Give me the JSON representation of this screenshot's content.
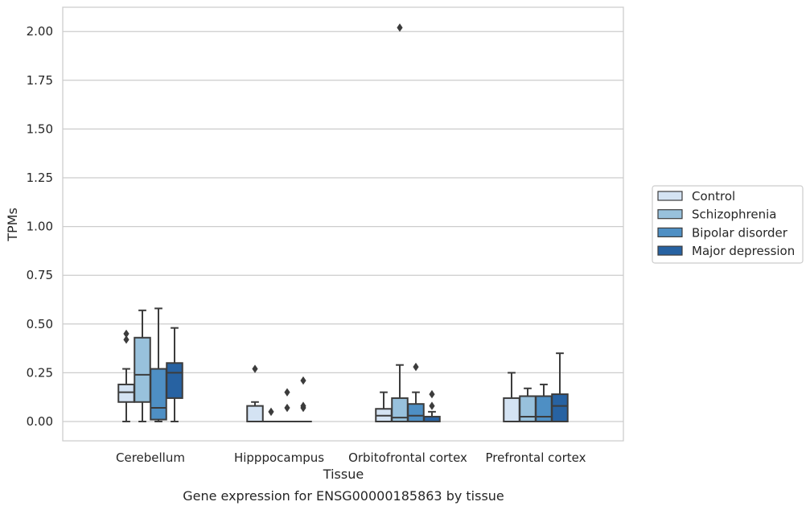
{
  "chart_data": {
    "type": "box",
    "title": "",
    "caption": "Gene expression for ENSG00000185863 by tissue",
    "xlabel": "Tissue",
    "ylabel": "TPMs",
    "ylim": [
      -0.1,
      2.12
    ],
    "yticks": [
      "0.00",
      "0.25",
      "0.50",
      "0.75",
      "1.00",
      "1.25",
      "1.50",
      "1.75",
      "2.00"
    ],
    "grid": "horizontal",
    "legend_position": "right",
    "categories": [
      "Cerebellum",
      "Hipppocampus",
      "Orbitofrontal cortex",
      "Prefrontal cortex"
    ],
    "colors": [
      "#d4e3f3",
      "#98c1dc",
      "#4e8fc4",
      "#2762a2"
    ],
    "series": [
      {
        "name": "Control",
        "boxes": [
          {
            "whisker_low": 0.0,
            "q1": 0.1,
            "median": 0.15,
            "q3": 0.19,
            "whisker_high": 0.27,
            "outliers": [
              0.45,
              0.42
            ]
          },
          {
            "whisker_low": 0.0,
            "q1": 0.0,
            "median": 0.0,
            "q3": 0.08,
            "whisker_high": 0.1,
            "outliers": [
              0.27
            ]
          },
          {
            "whisker_low": 0.0,
            "q1": 0.0,
            "median": 0.03,
            "q3": 0.065,
            "whisker_high": 0.15,
            "outliers": []
          },
          {
            "whisker_low": 0.0,
            "q1": 0.0,
            "median": 0.0,
            "q3": 0.12,
            "whisker_high": 0.25,
            "outliers": []
          }
        ]
      },
      {
        "name": "Schizophrenia",
        "boxes": [
          {
            "whisker_low": 0.0,
            "q1": 0.1,
            "median": 0.24,
            "q3": 0.43,
            "whisker_high": 0.57,
            "outliers": []
          },
          {
            "whisker_low": 0.0,
            "q1": 0.0,
            "median": 0.0,
            "q3": 0.0,
            "whisker_high": 0.0,
            "outliers": [
              0.05
            ]
          },
          {
            "whisker_low": 0.0,
            "q1": 0.0,
            "median": 0.02,
            "q3": 0.12,
            "whisker_high": 0.29,
            "outliers": [
              2.02
            ]
          },
          {
            "whisker_low": 0.0,
            "q1": 0.0,
            "median": 0.025,
            "q3": 0.13,
            "whisker_high": 0.17,
            "outliers": []
          }
        ]
      },
      {
        "name": "Bipolar disorder",
        "boxes": [
          {
            "whisker_low": 0.0,
            "q1": 0.01,
            "median": 0.07,
            "q3": 0.27,
            "whisker_high": 0.58,
            "outliers": []
          },
          {
            "whisker_low": 0.0,
            "q1": 0.0,
            "median": 0.0,
            "q3": 0.0,
            "whisker_high": 0.0,
            "outliers": [
              0.15,
              0.07
            ]
          },
          {
            "whisker_low": 0.0,
            "q1": 0.0,
            "median": 0.03,
            "q3": 0.09,
            "whisker_high": 0.15,
            "outliers": [
              0.28
            ]
          },
          {
            "whisker_low": 0.0,
            "q1": 0.0,
            "median": 0.025,
            "q3": 0.13,
            "whisker_high": 0.19,
            "outliers": []
          }
        ]
      },
      {
        "name": "Major depression",
        "boxes": [
          {
            "whisker_low": 0.0,
            "q1": 0.12,
            "median": 0.25,
            "q3": 0.3,
            "whisker_high": 0.48,
            "outliers": []
          },
          {
            "whisker_low": 0.0,
            "q1": 0.0,
            "median": 0.0,
            "q3": 0.0,
            "whisker_high": 0.0,
            "outliers": [
              0.21,
              0.08,
              0.07
            ]
          },
          {
            "whisker_low": 0.0,
            "q1": 0.0,
            "median": 0.0,
            "q3": 0.025,
            "whisker_high": 0.05,
            "outliers": [
              0.14,
              0.08
            ]
          },
          {
            "whisker_low": 0.0,
            "q1": 0.0,
            "median": 0.08,
            "q3": 0.14,
            "whisker_high": 0.35,
            "outliers": []
          }
        ]
      }
    ]
  }
}
